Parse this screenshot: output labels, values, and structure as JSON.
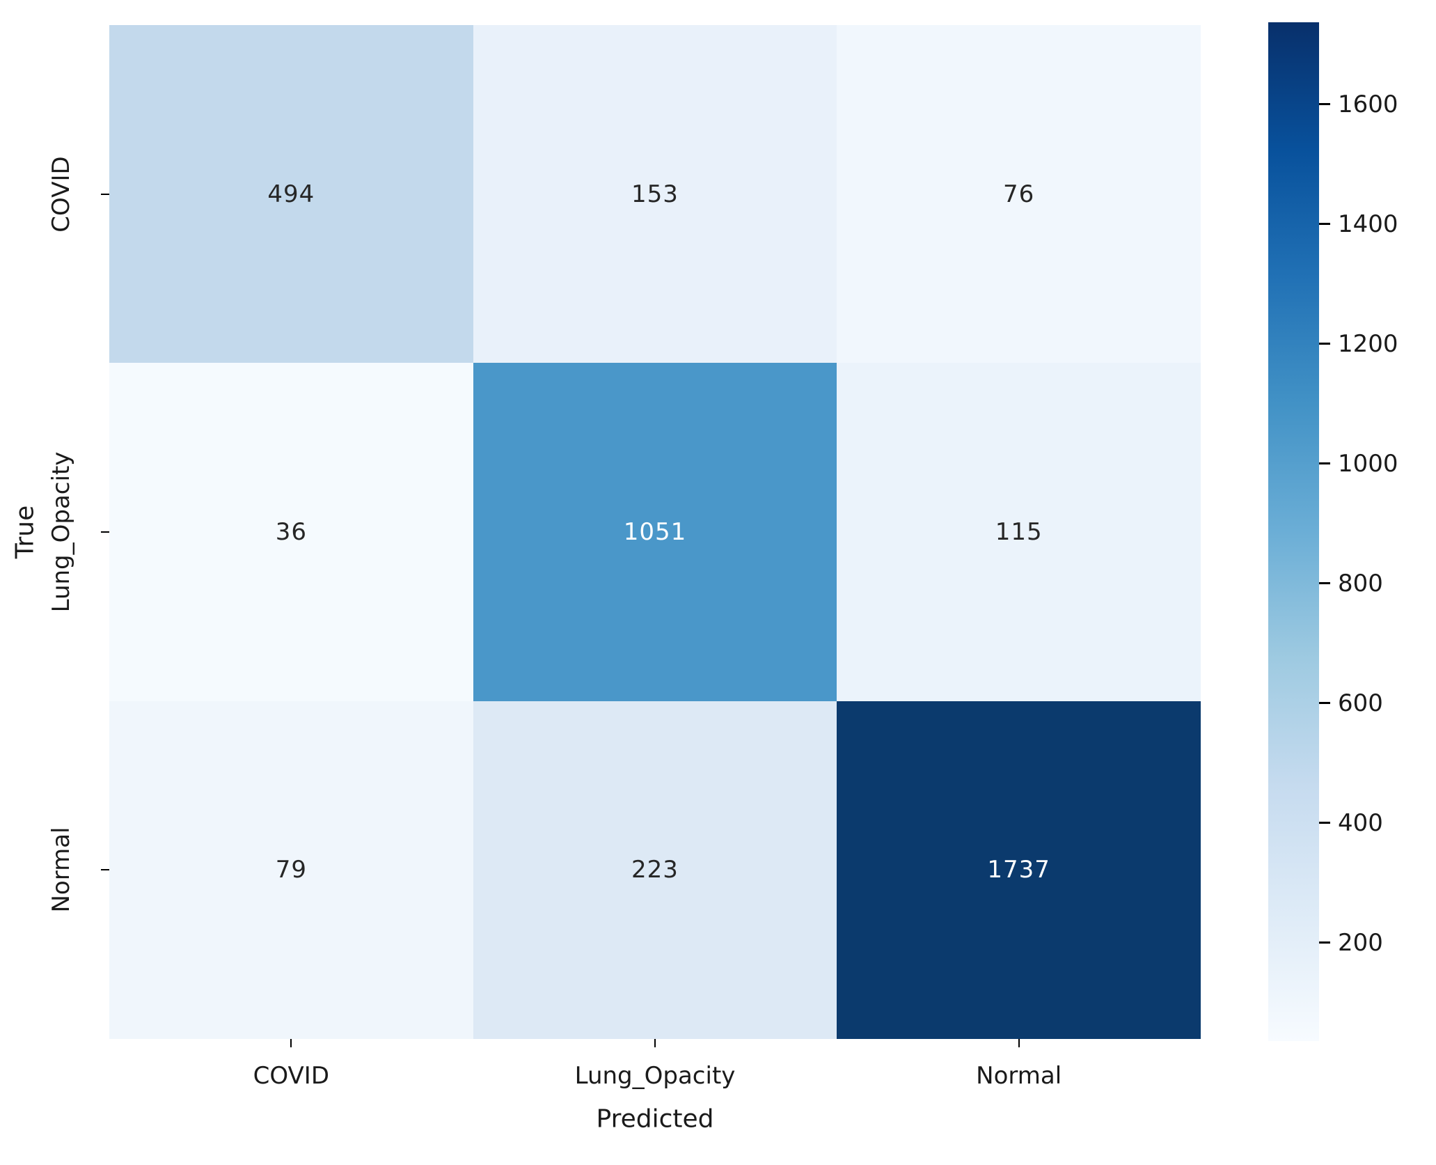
{
  "chart_data": {
    "type": "heatmap",
    "title": "",
    "xlabel": "Predicted",
    "ylabel": "True",
    "x_categories": [
      "COVID",
      "Lung_Opacity",
      "Normal"
    ],
    "y_categories": [
      "COVID",
      "Lung_Opacity",
      "Normal"
    ],
    "matrix": [
      [
        494,
        153,
        76
      ],
      [
        36,
        1051,
        115
      ],
      [
        79,
        223,
        1737
      ]
    ],
    "vmin": 36,
    "vmax": 1737,
    "colormap": "Blues",
    "legend_position": "right-colorbar",
    "grid": false,
    "colorbar_ticks": [
      200,
      400,
      600,
      800,
      1000,
      1200,
      1400,
      1600
    ],
    "cell_colors": [
      [
        "#c3d9ec",
        "#e9f1fa",
        "#f1f7fd"
      ],
      [
        "#f5fafe",
        "#4a97c9",
        "#ebf3fb"
      ],
      [
        "#f0f6fc",
        "#dde9f5",
        "#0b3a6d"
      ]
    ],
    "cell_text_colors": [
      [
        "#262626",
        "#262626",
        "#262626"
      ],
      [
        "#262626",
        "#ffffff",
        "#262626"
      ],
      [
        "#262626",
        "#262626",
        "#ffffff"
      ]
    ],
    "colormap_stops": [
      "#f7fbff",
      "#deebf7",
      "#c6dbef",
      "#9ecae1",
      "#6baed6",
      "#4292c6",
      "#2171b5",
      "#08519c",
      "#08306b"
    ]
  }
}
